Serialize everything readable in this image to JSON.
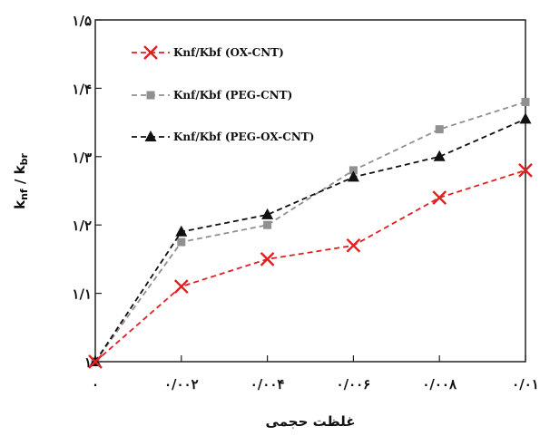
{
  "chart_data": {
    "type": "line",
    "xlabel": "غلظت حجمی",
    "ylabel": "k",
    "ylabel_sub1": "nf",
    "ylabel_mid": " / k",
    "ylabel_sub2": "br",
    "x": [
      0,
      0.002,
      0.004,
      0.006,
      0.008,
      0.01
    ],
    "x_tick_labels": [
      "۰",
      "۰/۰۰۲",
      "۰/۰۰۴",
      "۰/۰۰۶",
      "۰/۰۰۸",
      "۰/۰۱"
    ],
    "y_ticks": [
      1.0,
      1.1,
      1.2,
      1.3,
      1.4,
      1.5
    ],
    "y_tick_labels": [
      "۱",
      "۱/۱",
      "۱/۲",
      "۱/۳",
      "۱/۴",
      "۱/۵"
    ],
    "xlim": [
      0,
      0.01
    ],
    "ylim": [
      1.0,
      1.5
    ],
    "grid": false,
    "legend_position": "top-left",
    "series": [
      {
        "name": "Knf/Kbf (OX-CNT)",
        "color": "#e02020",
        "marker": "x",
        "values": [
          1.0,
          1.11,
          1.15,
          1.17,
          1.24,
          1.28
        ]
      },
      {
        "name": "Knf/Kbf (PEG-CNT)",
        "color": "#909090",
        "marker": "square",
        "values": [
          1.0,
          1.175,
          1.2,
          1.28,
          1.34,
          1.38
        ]
      },
      {
        "name": "Knf/Kbf (PEG-OX-CNT)",
        "color": "#111111",
        "marker": "triangle",
        "values": [
          1.0,
          1.19,
          1.215,
          1.27,
          1.3,
          1.355
        ]
      }
    ]
  }
}
